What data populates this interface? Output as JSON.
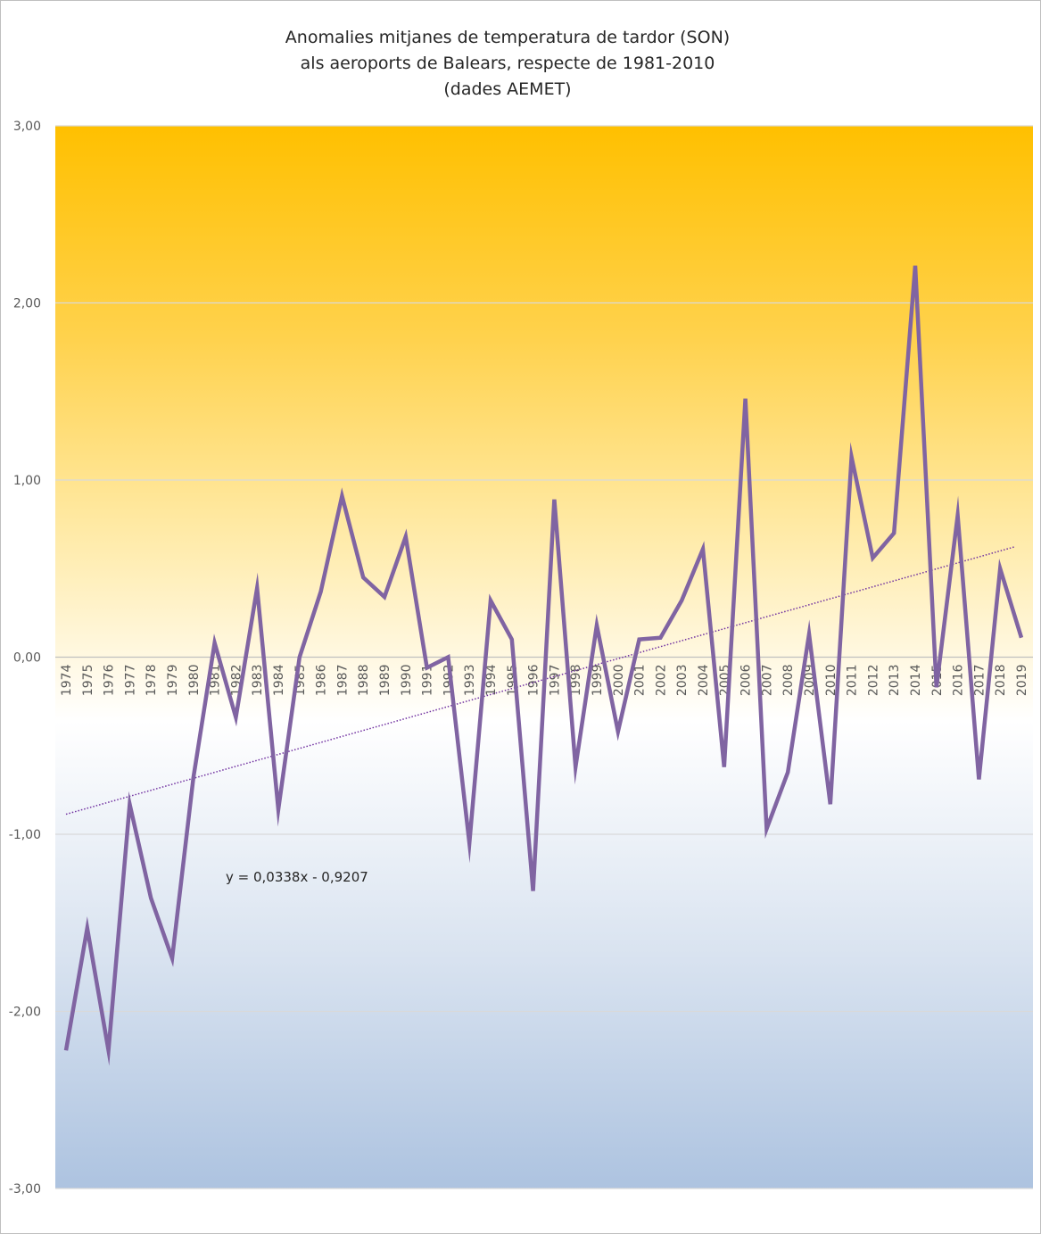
{
  "chart_data": {
    "type": "line",
    "title": [
      "Anomalies mitjanes de temperatura de tardor (SON)",
      "als aeroports de Balears, respecte de 1981-2010",
      "(dades AEMET)"
    ],
    "xlabel": "",
    "ylabel": "",
    "ylim": [
      -3,
      3
    ],
    "yticks": [
      3,
      2,
      1,
      0,
      -1,
      -2,
      -3
    ],
    "ytick_labels": [
      "3,00",
      "2,00",
      "1,00",
      "0,00",
      "-1,00",
      "-2,00",
      "-3,00"
    ],
    "grid": true,
    "x": [
      "1974",
      "1975",
      "1976",
      "1977",
      "1978",
      "1979",
      "1980",
      "1981",
      "1982",
      "1983",
      "1984",
      "1985",
      "1986",
      "1987",
      "1988",
      "1989",
      "1990",
      "1991",
      "1992",
      "1993",
      "1994",
      "1995",
      "1996",
      "1997",
      "1998",
      "1999",
      "2000",
      "2001",
      "2002",
      "2003",
      "2004",
      "2005",
      "2006",
      "2007",
      "2008",
      "2009",
      "2010",
      "2011",
      "2012",
      "2013",
      "2014",
      "2015",
      "2016",
      "2017",
      "2018",
      "2019"
    ],
    "series": [
      {
        "color": "#8064a2",
        "values": [
          -2.22,
          -1.53,
          -2.22,
          -0.83,
          -1.36,
          -1.7,
          -0.68,
          0.08,
          -0.34,
          0.39,
          -0.86,
          0.0,
          0.37,
          0.91,
          0.45,
          0.34,
          0.68,
          -0.06,
          0.0,
          -1.05,
          0.32,
          0.1,
          -1.32,
          0.89,
          -0.62,
          0.18,
          -0.42,
          0.1,
          0.11,
          0.32,
          0.61,
          -0.62,
          1.46,
          -0.97,
          -0.65,
          0.13,
          -0.83,
          1.13,
          0.56,
          0.7,
          2.21,
          -0.17,
          0.8,
          -0.69,
          0.5,
          0.11
        ]
      }
    ],
    "trendline": {
      "label": "y = 0,0338x - 0,9207",
      "slope": 0.0338,
      "intercept": -0.9207,
      "color": "#7030a0",
      "style": "dotted"
    },
    "background_gradient": {
      "top": "#ffc000",
      "middle": "#ffffff",
      "bottom": "#adc3e0"
    }
  }
}
